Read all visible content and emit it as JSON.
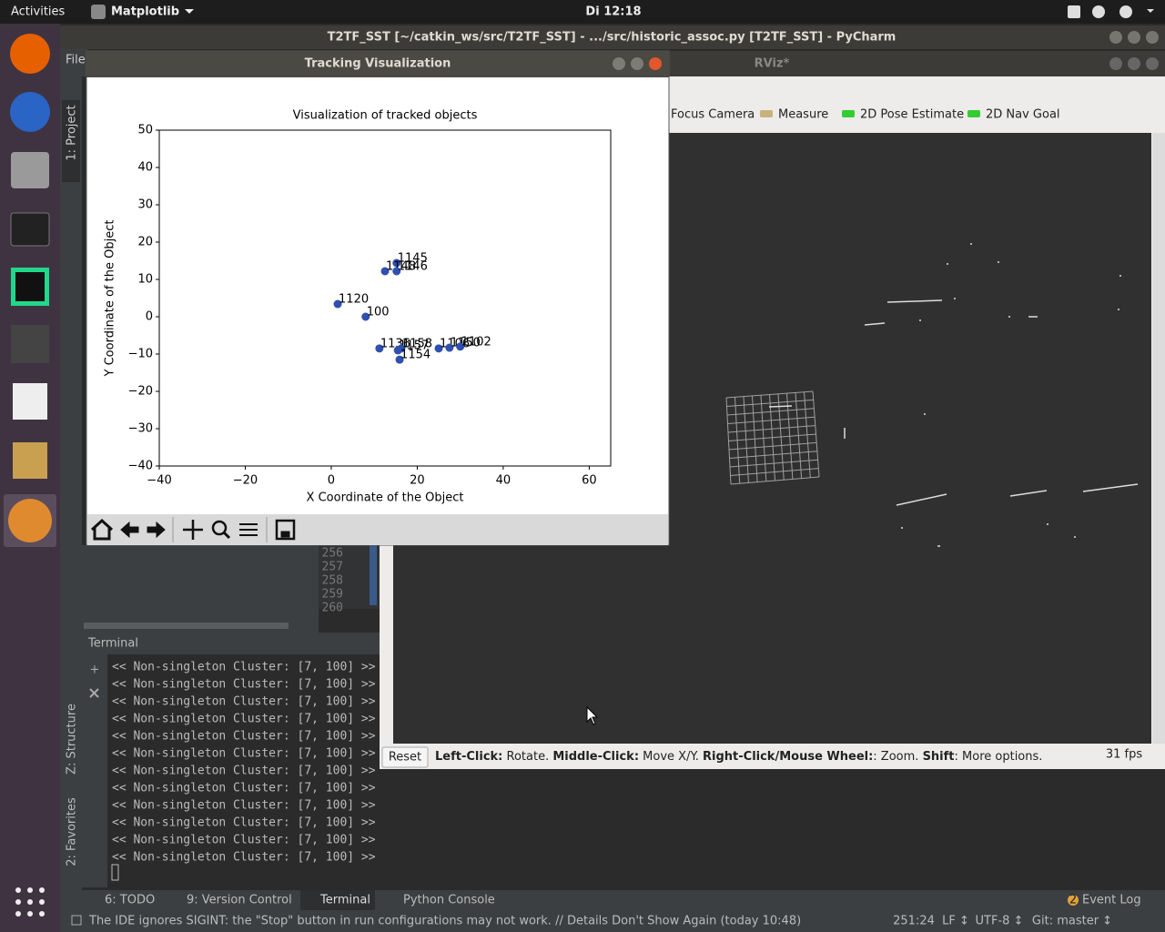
{
  "top_bar": {
    "activities": "Activities",
    "app": "Matplotlib",
    "clock": "Di 12:18"
  },
  "pycharm": {
    "title": "T2TF_SST [~/catkin_ws/src/T2TF_SST] - .../src/historic_assoc.py [T2TF_SST] - PyCharm",
    "menu_file": "File",
    "side_tabs": [
      "1: Project",
      "Z: Structure",
      "2: Favorites"
    ],
    "line_numbers": [
      "256",
      "257",
      "258",
      "259",
      "260"
    ],
    "terminal_header": "Terminal",
    "terminal_lines": [
      "<<  Non-singleton Cluster: [7, 100]  >>",
      "<<  Non-singleton Cluster: [7, 100]  >>",
      "<<  Non-singleton Cluster: [7, 100]  >>",
      "<<  Non-singleton Cluster: [7, 100]  >>",
      "<<  Non-singleton Cluster: [7, 100]  >>",
      "<<  Non-singleton Cluster: [7, 100]  >>",
      "<<  Non-singleton Cluster: [7, 100]  >>",
      "<<  Non-singleton Cluster: [7, 100]  >>",
      "<<  Non-singleton Cluster: [7, 100]  >>",
      "<<  Non-singleton Cluster: [7, 100]  >>",
      "<<  Non-singleton Cluster: [7, 100]  >>",
      "<<  Non-singleton Cluster: [7, 100]  >>"
    ],
    "bottom_tabs": [
      "6: TODO",
      "9: Version Control",
      "Terminal",
      "Python Console"
    ],
    "event_log_count": "2",
    "event_log": "Event Log",
    "status_message": "The IDE ignores SIGINT: the \"Stop\" button in run configurations may not work. // Details Don't Show Again (today 10:48)",
    "status_items": [
      "251:24",
      "LF ↕",
      "UTF-8 ↕",
      "Git: master ↕"
    ]
  },
  "rviz": {
    "title": "RViz*",
    "tools": [
      "Focus Camera",
      "Measure",
      "2D Pose Estimate",
      "2D Nav Goal"
    ],
    "reset": "Reset",
    "help": [
      {
        "text": "Left-Click:",
        "bold": true
      },
      {
        "text": " Rotate. ",
        "bold": false
      },
      {
        "text": "Middle-Click:",
        "bold": true
      },
      {
        "text": " Move X/Y. ",
        "bold": false
      },
      {
        "text": "Right-Click/Mouse Wheel:",
        "bold": true
      },
      {
        "text": ": Zoom. ",
        "bold": false
      },
      {
        "text": "Shift",
        "bold": true
      },
      {
        "text": ": More options.",
        "bold": false
      }
    ],
    "fps": "31 fps"
  },
  "figure_window": {
    "title": "Tracking Visualization"
  },
  "chart_data": {
    "type": "scatter",
    "title": "Visualization of tracked objects",
    "x_label": "X Coordinate of the Object",
    "y_label": "Y Coordinate of the Object",
    "x": [
      15.2,
      12.5,
      15.2,
      1.5,
      8,
      11.2,
      15.5,
      16.3,
      25,
      27.5,
      30,
      15.9
    ],
    "values": [
      14.4,
      12.2,
      12.2,
      3.4,
      0,
      -8.5,
      -9,
      -8.5,
      -8.5,
      -8.3,
      -8,
      -11.5
    ],
    "point_labels": [
      "1145",
      "1148",
      "1146",
      "1120",
      "100",
      "1136",
      "1157",
      "1158",
      "1106",
      "1150",
      "1102",
      "1154"
    ],
    "color": "#3050b0",
    "xlim": [
      -40,
      65
    ],
    "ylim": [
      -40,
      50
    ],
    "xticks": [
      {
        "value": -40,
        "label": "−40"
      },
      {
        "value": -20,
        "label": "−20"
      },
      0,
      20,
      40,
      60
    ],
    "yticks": [
      {
        "value": -40,
        "label": "−40"
      },
      {
        "value": -30,
        "label": "−30"
      },
      {
        "value": -20,
        "label": "−20"
      },
      {
        "value": -10,
        "label": "−10"
      },
      0,
      10,
      20,
      30,
      40,
      50
    ]
  }
}
